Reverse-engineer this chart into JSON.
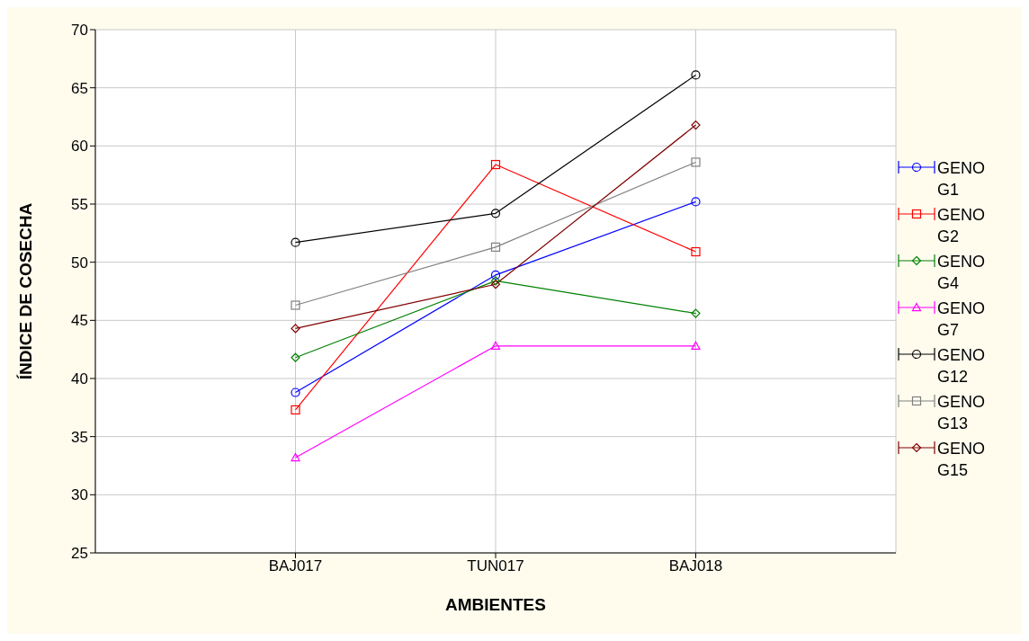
{
  "chart_data": {
    "type": "line",
    "xlabel": "AMBIENTES",
    "ylabel": "ÍNDICE DE COSECHA",
    "categories": [
      "BAJ017",
      "TUN017",
      "BAJ018"
    ],
    "ylim": [
      25,
      70
    ],
    "yticks": [
      25,
      30,
      35,
      40,
      45,
      50,
      55,
      60,
      65,
      70
    ],
    "grid": true,
    "legend": "right",
    "series": [
      {
        "name": "GENO G1",
        "color": "#0000ff",
        "marker": "circle",
        "values": [
          38.8,
          48.9,
          55.2
        ]
      },
      {
        "name": "GENO G2",
        "color": "#ff0000",
        "marker": "square",
        "values": [
          37.3,
          58.4,
          50.9
        ]
      },
      {
        "name": "GENO G4",
        "color": "#008000",
        "marker": "diamond",
        "values": [
          41.8,
          48.4,
          45.6
        ]
      },
      {
        "name": "GENO G7",
        "color": "#ff00ff",
        "marker": "triangle",
        "values": [
          33.2,
          42.8,
          42.8
        ]
      },
      {
        "name": "GENO G12",
        "color": "#000000",
        "marker": "circle",
        "values": [
          51.7,
          54.2,
          66.1
        ]
      },
      {
        "name": "GENO G13",
        "color": "#808080",
        "marker": "square",
        "values": [
          46.3,
          51.3,
          58.6
        ]
      },
      {
        "name": "GENO G15",
        "color": "#800000",
        "marker": "diamond",
        "values": [
          44.3,
          48.1,
          61.8
        ]
      }
    ]
  }
}
